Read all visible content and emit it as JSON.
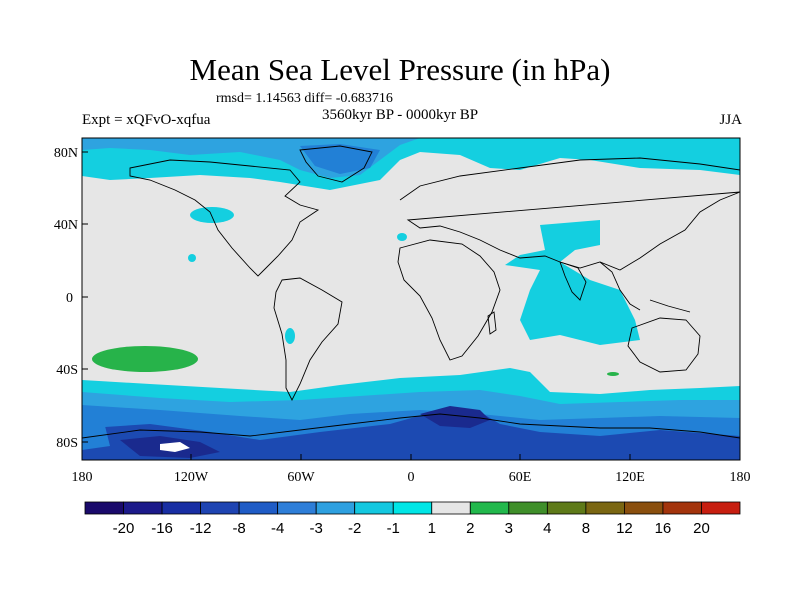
{
  "title": "Mean Sea Level Pressure (in hPa)",
  "stats": "rmsd= 1.14563 diff= -0.683716",
  "experiment": "Expt = xQFvO-xqfua",
  "period": "3560kyr BP - 0000kyr BP",
  "season": "JJA",
  "axes": {
    "lat_ticks": [
      "80N",
      "40N",
      "0",
      "40S",
      "80S"
    ],
    "lon_ticks": [
      "180",
      "120W",
      "60W",
      "0",
      "60E",
      "120E",
      "180"
    ]
  },
  "colorbar": {
    "labels": [
      "-20",
      "-16",
      "-12",
      "-8",
      "-4",
      "-3",
      "-2",
      "-1",
      "1",
      "2",
      "3",
      "4",
      "8",
      "12",
      "16",
      "20"
    ],
    "colors": [
      "#1a0a6b",
      "#1c1a8a",
      "#182ea3",
      "#1e44b2",
      "#1f5cc6",
      "#2e7ed8",
      "#2ea0e0",
      "#14c8e0",
      "#00e6e6",
      "#e6e6e6",
      "#22b84c",
      "#3f8f2a",
      "#5e7a19",
      "#7a6612",
      "#8a4f0e",
      "#a3340c",
      "#c71e10"
    ]
  },
  "palette": {
    "neutral": "#e6e6e6",
    "cyan": "#14cfe0",
    "light_blue": "#2ea3e0",
    "blue": "#2280d6",
    "dark_blue": "#1c4ab2",
    "navy": "#1a2a8e",
    "green": "#27b34a",
    "coast": "#000000"
  }
}
